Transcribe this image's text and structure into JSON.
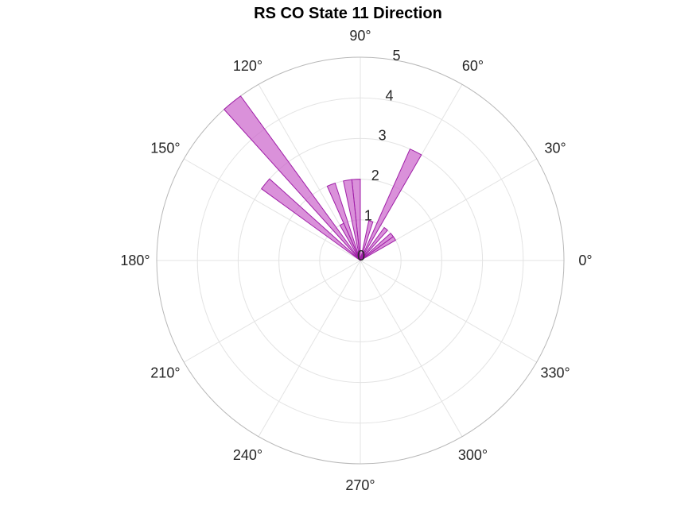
{
  "chart_data": {
    "type": "polar-histogram",
    "title": "RS  CO State 11 Direction",
    "rlim": [
      0,
      5
    ],
    "r_ticks": [
      "0",
      "1",
      "2",
      "3",
      "4",
      "5"
    ],
    "theta_ticks": [
      "0°",
      "30°",
      "60°",
      "90°",
      "120°",
      "150°",
      "180°",
      "210°",
      "240°",
      "270°",
      "300°",
      "330°"
    ],
    "grid": true,
    "bar_color": "#cc66cc",
    "edge_color": "#a020a8",
    "bins": [
      {
        "start_deg": 30,
        "end_deg": 36,
        "value": 1
      },
      {
        "start_deg": 36,
        "end_deg": 42,
        "value": 1
      },
      {
        "start_deg": 48,
        "end_deg": 54,
        "value": 1
      },
      {
        "start_deg": 60,
        "end_deg": 66,
        "value": 3
      },
      {
        "start_deg": 72,
        "end_deg": 78,
        "value": 1
      },
      {
        "start_deg": 90,
        "end_deg": 96,
        "value": 2
      },
      {
        "start_deg": 96,
        "end_deg": 102,
        "value": 2
      },
      {
        "start_deg": 108,
        "end_deg": 114,
        "value": 2
      },
      {
        "start_deg": 114,
        "end_deg": 120,
        "value": 1
      },
      {
        "start_deg": 126,
        "end_deg": 132,
        "value": 5
      },
      {
        "start_deg": 138,
        "end_deg": 144,
        "value": 3
      }
    ]
  }
}
